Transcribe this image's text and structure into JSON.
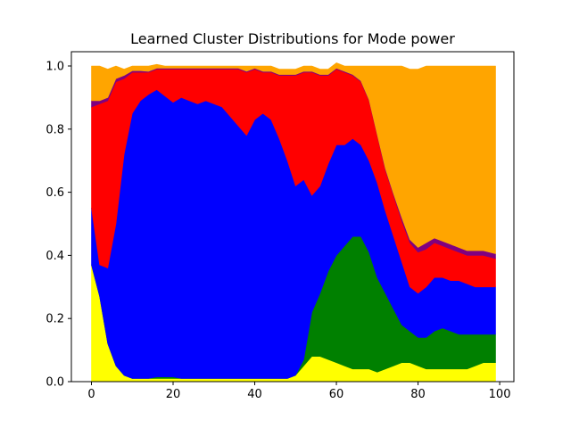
{
  "chart_data": {
    "type": "area",
    "stacked": true,
    "title": "Learned Cluster Distributions for Mode power",
    "xlabel": "",
    "ylabel": "",
    "xlim": [
      0,
      99
    ],
    "ylim": [
      0,
      1.0
    ],
    "xticks": [
      0,
      20,
      40,
      60,
      80,
      100
    ],
    "xtick_labels": [
      "0",
      "20",
      "40",
      "60",
      "80",
      "100"
    ],
    "yticks": [
      0.0,
      0.2,
      0.4,
      0.6,
      0.8,
      1.0
    ],
    "ytick_labels": [
      "0.0",
      "0.2",
      "0.4",
      "0.6",
      "0.8",
      "1.0"
    ],
    "x": [
      0,
      2,
      4,
      6,
      8,
      10,
      12,
      14,
      16,
      18,
      20,
      22,
      24,
      26,
      28,
      30,
      32,
      34,
      36,
      38,
      40,
      42,
      44,
      46,
      48,
      50,
      52,
      54,
      56,
      58,
      60,
      62,
      64,
      66,
      68,
      70,
      72,
      74,
      76,
      78,
      80,
      82,
      84,
      86,
      88,
      90,
      92,
      94,
      96,
      99
    ],
    "series": [
      {
        "name": "yellow",
        "color": "#ffff00",
        "values": [
          0.37,
          0.27,
          0.12,
          0.05,
          0.02,
          0.01,
          0.01,
          0.01,
          0.01,
          0.01,
          0.01,
          0.01,
          0.01,
          0.01,
          0.01,
          0.01,
          0.01,
          0.01,
          0.01,
          0.01,
          0.01,
          0.01,
          0.01,
          0.01,
          0.01,
          0.02,
          0.05,
          0.08,
          0.08,
          0.07,
          0.06,
          0.05,
          0.04,
          0.04,
          0.04,
          0.03,
          0.04,
          0.05,
          0.06,
          0.06,
          0.05,
          0.04,
          0.04,
          0.04,
          0.04,
          0.04,
          0.04,
          0.05,
          0.06,
          0.06
        ]
      },
      {
        "name": "green",
        "color": "#008000",
        "values": [
          0.0,
          0.0,
          0.0,
          0.0,
          0.0,
          0.0,
          0.0,
          0.0,
          0.005,
          0.005,
          0.005,
          0.0,
          0.0,
          0.0,
          0.0,
          0.0,
          0.0,
          0.0,
          0.0,
          0.0,
          0.0,
          0.0,
          0.0,
          0.0,
          0.0,
          0.0,
          0.02,
          0.14,
          0.2,
          0.28,
          0.34,
          0.38,
          0.42,
          0.42,
          0.37,
          0.3,
          0.24,
          0.18,
          0.12,
          0.1,
          0.09,
          0.1,
          0.12,
          0.13,
          0.12,
          0.11,
          0.11,
          0.1,
          0.09,
          0.09
        ]
      },
      {
        "name": "blue",
        "color": "#0000ff",
        "values": [
          0.18,
          0.1,
          0.24,
          0.45,
          0.7,
          0.84,
          0.88,
          0.9,
          0.91,
          0.89,
          0.87,
          0.89,
          0.88,
          0.87,
          0.88,
          0.87,
          0.86,
          0.83,
          0.8,
          0.77,
          0.82,
          0.84,
          0.82,
          0.76,
          0.69,
          0.6,
          0.57,
          0.37,
          0.34,
          0.34,
          0.35,
          0.32,
          0.31,
          0.29,
          0.29,
          0.3,
          0.26,
          0.23,
          0.2,
          0.14,
          0.14,
          0.16,
          0.17,
          0.16,
          0.16,
          0.17,
          0.16,
          0.15,
          0.15,
          0.15
        ]
      },
      {
        "name": "red",
        "color": "#ff0000",
        "values": [
          0.32,
          0.51,
          0.53,
          0.45,
          0.24,
          0.13,
          0.09,
          0.07,
          0.065,
          0.085,
          0.105,
          0.09,
          0.1,
          0.11,
          0.1,
          0.11,
          0.12,
          0.15,
          0.18,
          0.2,
          0.16,
          0.13,
          0.15,
          0.2,
          0.27,
          0.35,
          0.34,
          0.39,
          0.35,
          0.28,
          0.24,
          0.23,
          0.2,
          0.2,
          0.19,
          0.15,
          0.13,
          0.13,
          0.13,
          0.14,
          0.13,
          0.12,
          0.11,
          0.1,
          0.1,
          0.09,
          0.09,
          0.1,
          0.1,
          0.09
        ]
      },
      {
        "name": "purple",
        "color": "#800080",
        "values": [
          0.02,
          0.01,
          0.01,
          0.01,
          0.01,
          0.005,
          0.005,
          0.003,
          0.003,
          0.003,
          0.003,
          0.003,
          0.003,
          0.003,
          0.003,
          0.003,
          0.003,
          0.003,
          0.003,
          0.003,
          0.003,
          0.003,
          0.003,
          0.003,
          0.003,
          0.003,
          0.003,
          0.003,
          0.003,
          0.003,
          0.003,
          0.003,
          0.003,
          0.003,
          0.003,
          0.003,
          0.005,
          0.005,
          0.01,
          0.01,
          0.015,
          0.02,
          0.015,
          0.015,
          0.015,
          0.015,
          0.015,
          0.015,
          0.015,
          0.015
        ]
      },
      {
        "name": "orange",
        "color": "#ffa500",
        "values": [
          0.11,
          0.11,
          0.09,
          0.04,
          0.02,
          0.015,
          0.015,
          0.017,
          0.012,
          0.007,
          0.007,
          0.007,
          0.007,
          0.007,
          0.007,
          0.007,
          0.007,
          0.007,
          0.007,
          0.017,
          0.007,
          0.017,
          0.017,
          0.017,
          0.017,
          0.017,
          0.017,
          0.017,
          0.017,
          0.017,
          0.017,
          0.017,
          0.027,
          0.047,
          0.107,
          0.217,
          0.325,
          0.405,
          0.48,
          0.54,
          0.565,
          0.56,
          0.545,
          0.555,
          0.565,
          0.575,
          0.585,
          0.585,
          0.585,
          0.595
        ]
      }
    ]
  }
}
